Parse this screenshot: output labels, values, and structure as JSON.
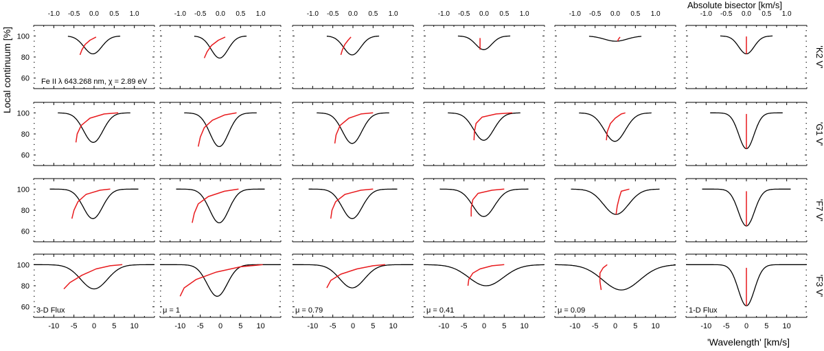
{
  "figure": {
    "top_axis_label": "Absolute bisector [km/s]",
    "y_axis_label": "Local continuum [%]",
    "x_axis_label": "'Wavelength' [km/s]",
    "line_annotation": "Fe II λ 643.268 nm, χ = 2.89 eV",
    "profile_color": "#000000",
    "bisector_color": "#e8191c"
  },
  "chart_data": {
    "type": "line",
    "title": "",
    "xlabel": "'Wavelength' [km/s]",
    "ylabel": "Local continuum [%]",
    "top_xlabel": "Absolute bisector [km/s]",
    "xlim": [
      -15,
      15
    ],
    "ylim": [
      50,
      110
    ],
    "x_ticks": [
      -10,
      -5,
      0,
      5,
      10
    ],
    "y_ticks": [
      60,
      80,
      100
    ],
    "top_xlim": [
      -1.5,
      1.5
    ],
    "top_ticks": [
      -1.0,
      -0.5,
      0.0,
      0.5,
      1.0
    ],
    "grid": false,
    "columns": [
      "3-D Flux",
      "μ = 1",
      "μ = 0.79",
      "μ = 0.41",
      "μ = 0.09",
      "1-D Flux"
    ],
    "rows": [
      "'K2 V'",
      "'G1 V'",
      "'F7 V'",
      "'F3 V'"
    ],
    "panels": [
      [
        {
          "depth": 17,
          "center": -0.3,
          "sigma": 2.2,
          "xrange": [
            -6.5,
            6.5
          ],
          "bisector": [
            [
              -0.35,
              82
            ],
            [
              -0.3,
              87
            ],
            [
              -0.22,
              92
            ],
            [
              -0.1,
              96
            ],
            [
              0.05,
              99
            ]
          ]
        },
        {
          "depth": 21,
          "center": -0.2,
          "sigma": 2.1,
          "xrange": [
            -6.5,
            6.5
          ],
          "bisector": [
            [
              -0.4,
              79
            ],
            [
              -0.33,
              85
            ],
            [
              -0.22,
              91
            ],
            [
              -0.05,
              96
            ],
            [
              0.12,
              99
            ]
          ]
        },
        {
          "depth": 18,
          "center": -0.2,
          "sigma": 2.1,
          "xrange": [
            -6.5,
            6.5
          ],
          "bisector": [
            [
              -0.3,
              82
            ],
            [
              -0.26,
              87
            ],
            [
              -0.2,
              92
            ],
            [
              -0.12,
              96
            ],
            [
              -0.05,
              99
            ]
          ]
        },
        {
          "depth": 13,
          "center": -0.1,
          "sigma": 2.0,
          "xrange": [
            -6.5,
            6.5
          ],
          "bisector": [
            [
              -0.1,
              87
            ],
            [
              -0.1,
              91
            ],
            [
              -0.1,
              95
            ],
            [
              -0.1,
              98
            ]
          ]
        },
        {
          "depth": 5,
          "center": 0.1,
          "sigma": 2.8,
          "xrange": [
            -6.5,
            6.5
          ],
          "bisector": [
            [
              0.06,
              95
            ],
            [
              0.08,
              97
            ],
            [
              0.12,
              99
            ]
          ]
        },
        {
          "depth": 17,
          "center": 0.0,
          "sigma": 1.9,
          "xrange": [
            -6.5,
            6.5
          ],
          "bisector": [
            [
              0.0,
              83
            ],
            [
              0.0,
              88
            ],
            [
              0.0,
              93
            ],
            [
              0.0,
              97
            ],
            [
              0.0,
              99.5
            ]
          ]
        }
      ],
      [
        {
          "depth": 28,
          "center": -0.2,
          "sigma": 2.4,
          "xrange": [
            -9,
            9
          ],
          "bisector": [
            [
              -0.45,
              72
            ],
            [
              -0.42,
              80
            ],
            [
              -0.32,
              88
            ],
            [
              -0.1,
              95
            ],
            [
              0.25,
              99
            ],
            [
              0.6,
              100
            ]
          ]
        },
        {
          "depth": 32,
          "center": -0.3,
          "sigma": 2.3,
          "xrange": [
            -9,
            9
          ],
          "bisector": [
            [
              -0.55,
              68
            ],
            [
              -0.5,
              77
            ],
            [
              -0.4,
              86
            ],
            [
              -0.2,
              93
            ],
            [
              0.1,
              98
            ],
            [
              0.4,
              100
            ]
          ]
        },
        {
          "depth": 29,
          "center": -0.2,
          "sigma": 2.4,
          "xrange": [
            -9,
            9
          ],
          "bisector": [
            [
              -0.45,
              71
            ],
            [
              -0.42,
              79
            ],
            [
              -0.32,
              88
            ],
            [
              -0.1,
              95
            ],
            [
              0.2,
              99
            ],
            [
              0.5,
              100
            ]
          ]
        },
        {
          "depth": 26,
          "center": -0.1,
          "sigma": 2.5,
          "xrange": [
            -9,
            9
          ],
          "bisector": [
            [
              -0.25,
              74
            ],
            [
              -0.24,
              82
            ],
            [
              -0.2,
              90
            ],
            [
              -0.05,
              96
            ],
            [
              0.3,
              99
            ],
            [
              0.7,
              100
            ]
          ]
        },
        {
          "depth": 27,
          "center": -0.1,
          "sigma": 2.6,
          "xrange": [
            -9,
            9
          ],
          "bisector": [
            [
              -0.22,
              74
            ],
            [
              -0.2,
              82
            ],
            [
              -0.12,
              90
            ],
            [
              0.0,
              95
            ],
            [
              0.15,
              99
            ],
            [
              0.25,
              100
            ]
          ]
        },
        {
          "depth": 34,
          "center": 0.0,
          "sigma": 1.9,
          "xrange": [
            -9,
            9
          ],
          "bisector": [
            [
              0.0,
              66
            ],
            [
              0.0,
              75
            ],
            [
              0.0,
              84
            ],
            [
              0.0,
              93
            ],
            [
              0.0,
              99
            ]
          ]
        }
      ],
      [
        {
          "depth": 28,
          "center": -0.3,
          "sigma": 2.4,
          "xrange": [
            -11,
            11
          ],
          "bisector": [
            [
              -0.55,
              72
            ],
            [
              -0.5,
              80
            ],
            [
              -0.4,
              88
            ],
            [
              -0.2,
              95
            ],
            [
              0.15,
              99
            ],
            [
              0.4,
              100
            ]
          ]
        },
        {
          "depth": 32,
          "center": -0.3,
          "sigma": 2.4,
          "xrange": [
            -11,
            11
          ],
          "bisector": [
            [
              -0.7,
              68
            ],
            [
              -0.65,
              77
            ],
            [
              -0.55,
              86
            ],
            [
              -0.3,
              93
            ],
            [
              0.1,
              98
            ],
            [
              0.45,
              100
            ]
          ]
        },
        {
          "depth": 28,
          "center": -0.2,
          "sigma": 2.5,
          "xrange": [
            -11,
            11
          ],
          "bisector": [
            [
              -0.55,
              72
            ],
            [
              -0.52,
              80
            ],
            [
              -0.43,
              88
            ],
            [
              -0.2,
              95
            ],
            [
              0.2,
              99
            ],
            [
              0.5,
              100
            ]
          ]
        },
        {
          "depth": 26,
          "center": -0.1,
          "sigma": 2.7,
          "xrange": [
            -11,
            11
          ],
          "bisector": [
            [
              -0.32,
              74
            ],
            [
              -0.32,
              82
            ],
            [
              -0.28,
              90
            ],
            [
              -0.15,
              96
            ],
            [
              0.2,
              99
            ],
            [
              0.5,
              100
            ]
          ]
        },
        {
          "depth": 24,
          "center": 0.2,
          "sigma": 3.1,
          "xrange": [
            -11,
            11
          ],
          "bisector": [
            [
              0.02,
              76
            ],
            [
              0.05,
              84
            ],
            [
              0.1,
              92
            ],
            [
              0.15,
              98
            ],
            [
              0.35,
              100
            ]
          ]
        },
        {
          "depth": 35,
          "center": 0.0,
          "sigma": 2.0,
          "xrange": [
            -11,
            11
          ],
          "bisector": [
            [
              0.0,
              65
            ],
            [
              0.0,
              74
            ],
            [
              0.0,
              84
            ],
            [
              0.0,
              93
            ],
            [
              0.0,
              98
            ]
          ]
        }
      ],
      [
        {
          "depth": 23,
          "center": 0.0,
          "sigma": 3.3,
          "xrange": [
            -15,
            15
          ],
          "bisector": [
            [
              -0.75,
              77
            ],
            [
              -0.6,
              83
            ],
            [
              -0.3,
              90
            ],
            [
              0.05,
              96
            ],
            [
              0.4,
              99
            ],
            [
              0.7,
              100
            ]
          ]
        },
        {
          "depth": 30,
          "center": -0.8,
          "sigma": 2.5,
          "xrange": [
            -15,
            15
          ],
          "bisector": [
            [
              -1.0,
              70
            ],
            [
              -0.9,
              78
            ],
            [
              -0.6,
              86
            ],
            [
              -0.1,
              93
            ],
            [
              0.5,
              98
            ],
            [
              1.05,
              100
            ]
          ]
        },
        {
          "depth": 22,
          "center": -0.2,
          "sigma": 3.1,
          "xrange": [
            -15,
            15
          ],
          "bisector": [
            [
              -0.65,
              78
            ],
            [
              -0.55,
              85
            ],
            [
              -0.3,
              91
            ],
            [
              0.1,
              96
            ],
            [
              0.5,
              99
            ],
            [
              0.8,
              100
            ]
          ]
        },
        {
          "depth": 20,
          "center": 0.5,
          "sigma": 4.3,
          "xrange": [
            -15,
            15
          ],
          "bisector": [
            [
              -0.4,
              80
            ],
            [
              -0.38,
              86
            ],
            [
              -0.28,
              92
            ],
            [
              -0.1,
              96
            ],
            [
              0.2,
              99
            ],
            [
              0.5,
              100
            ]
          ]
        },
        {
          "depth": 24,
          "center": 1.5,
          "sigma": 4.6,
          "xrange": [
            -15,
            15
          ],
          "bisector": [
            [
              -0.35,
              76
            ],
            [
              -0.38,
              84
            ],
            [
              -0.38,
              92
            ],
            [
              -0.3,
              97
            ],
            [
              -0.2,
              100
            ]
          ]
        },
        {
          "depth": 39,
          "center": 0.0,
          "sigma": 2.0,
          "xrange": [
            -15,
            15
          ],
          "bisector": [
            [
              0.0,
              61
            ],
            [
              0.0,
              72
            ],
            [
              0.0,
              83
            ],
            [
              0.0,
              92
            ],
            [
              0.0,
              97
            ]
          ]
        }
      ]
    ]
  }
}
